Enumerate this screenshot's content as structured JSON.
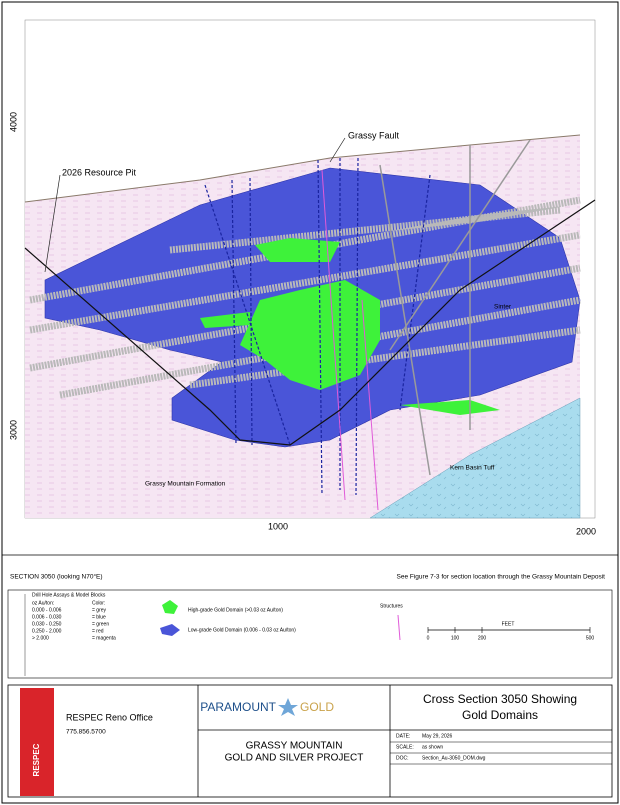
{
  "section": {
    "axis_labels": {
      "y_top": "4000",
      "y_bottom": "3000",
      "x_left": "1000",
      "x_right": "2000"
    },
    "annotations": {
      "fault": "Grassy Fault",
      "pit": "2026 Resource Pit",
      "sinter": "Sinter",
      "formation": "Grassy Mountain Formation",
      "tuff": "Kern Basin Tuff"
    },
    "caption_left": "SECTION 3050 (looking N70°E)",
    "caption_right": "See Figure 7-3 for section location through the Grassy Mountain Deposit"
  },
  "legend": {
    "drill_title": "Drill Hole Assays & Model Blocks",
    "grade_header": "oz Au/ton:",
    "color_header": "Color:",
    "rows": [
      [
        "0.000 - 0.006",
        "= grey"
      ],
      [
        "0.006 - 0.030",
        "= blue"
      ],
      [
        "0.030 - 0.250",
        "= green"
      ],
      [
        "0.250 - 2.000",
        "= red"
      ],
      [
        "> 2.000",
        "= magenta"
      ]
    ],
    "high_grade": "High-grade Gold Domain (>0.03 oz Au/ton)",
    "low_grade": "Low-grade Gold Domain (0.006 - 0.03 oz Au/ton)",
    "structures": "Structures",
    "scale_title": "FEET",
    "scale_ticks": [
      "0",
      "100",
      "200",
      "500"
    ]
  },
  "title_block": {
    "logo": "RESPEC",
    "office": "RESPEC Reno Office",
    "phone": "775.856.5700",
    "brand_1": "PARAMOUNT",
    "brand_2": "GOLD",
    "project_1": "GRASSY MOUNTAIN",
    "project_2": "GOLD AND SILVER PROJECT",
    "title_1": "Cross Section 3050 Showing",
    "title_2": "Gold Domains",
    "date_label": "DATE:",
    "date": "May 29, 2026",
    "scale_label": "SCALE:",
    "scale": "as shown",
    "doc_label": "DOC:",
    "doc": "Section_Au-3050_DOM.dwg"
  }
}
